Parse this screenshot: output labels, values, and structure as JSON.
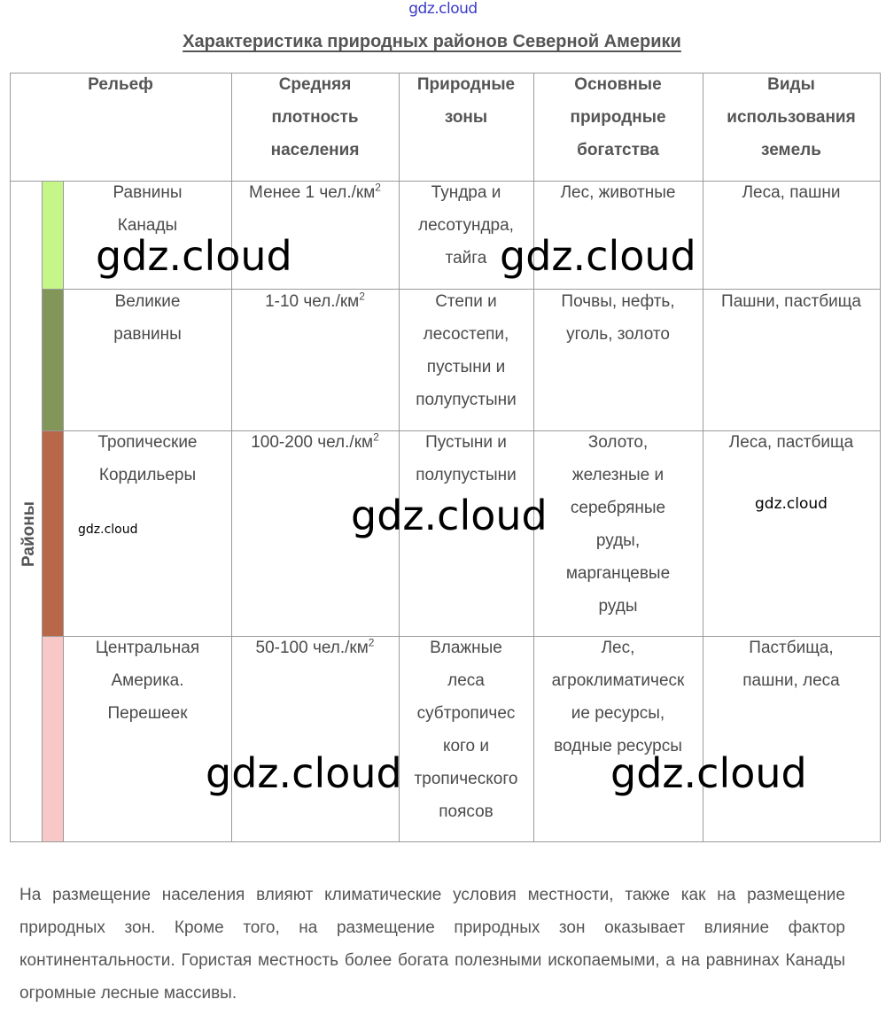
{
  "watermark": "gdz.cloud",
  "title": "Характеристика природных районов Северной Америки",
  "headers": {
    "relief": "Рельеф",
    "density": [
      "Средняя",
      "плотность",
      "населения"
    ],
    "zones": [
      "Природные",
      "зоны"
    ],
    "resources": [
      "Основные",
      "природные",
      "богатства"
    ],
    "land_use": [
      "Виды",
      "использования",
      "земель"
    ]
  },
  "regions_label": "Районы",
  "rows": [
    {
      "stripe_color": "#c6f58a",
      "relief": [
        "Равнины",
        "Канады"
      ],
      "density": "Менее 1 чел./км",
      "zones": [
        "Тундра и",
        "лесотундра,",
        "тайга"
      ],
      "resources": [
        "Лес, животные"
      ],
      "land_use": [
        "Леса, пашни"
      ]
    },
    {
      "stripe_color": "#82965a",
      "relief": [
        "Великие",
        "равнины"
      ],
      "density": "1-10 чел./км",
      "zones": [
        "Степи и",
        "лесостепи,",
        "пустыни и",
        "полупустыни"
      ],
      "resources": [
        "Почвы, нефть,",
        "уголь, золото"
      ],
      "land_use": [
        "Пашни, пастбища"
      ]
    },
    {
      "stripe_color": "#b86848",
      "relief": [
        "Тропические",
        "Кордильеры"
      ],
      "density": "100-200 чел./км",
      "zones": [
        "Пустыни и",
        "полупустыни"
      ],
      "resources": [
        "Золото,",
        "железные и",
        "серебряные",
        "руды,",
        "марганцевые",
        "руды"
      ],
      "land_use": [
        "Леса, пастбища"
      ]
    },
    {
      "stripe_color": "#f8c8c8",
      "relief": [
        "Центральная",
        "Америка.",
        "Перешеек"
      ],
      "density": "50-100 чел./км",
      "zones": [
        "Влажные",
        "леса",
        "субтропичес",
        "кого и",
        "тропического",
        "поясов"
      ],
      "resources": [
        "Лес,",
        "агроклиматическ",
        "ие ресурсы,",
        "водные ресурсы"
      ],
      "land_use": [
        "Пастбища,",
        "пашни, леса"
      ]
    }
  ],
  "sup": "2",
  "paragraph": "На размещение населения влияют климатические условия местности, также как на размещение природных зон. Кроме того, на размещение природных зон оказывает влияние фактор континентальности. Гористая местность более богата полезными ископаемыми, а на равнинах Канады огромные лесные массивы."
}
